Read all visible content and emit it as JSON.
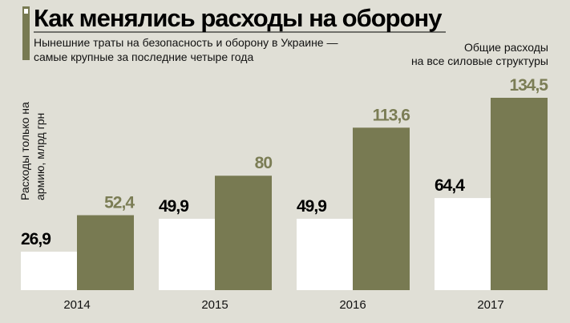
{
  "chart_data": {
    "type": "bar",
    "title": "Как менялись расходы на оборону",
    "subtitle": [
      "Нынешние траты на безопасность и оборону в Украине —",
      "самые крупные за последние четыре года"
    ],
    "categories": [
      "2014",
      "2015",
      "2016",
      "2017"
    ],
    "series": [
      {
        "name": "Расходы только на армию, млрд грн",
        "label_lines": [
          "Расходы только на",
          "армию, млрд грн"
        ],
        "values": [
          26.9,
          49.9,
          49.9,
          64.4
        ],
        "labels": [
          "26,9",
          "49,9",
          "49,9",
          "64,4"
        ],
        "color": "#ffffff",
        "label_color": "#000000"
      },
      {
        "name": "Общие расходы на все силовые структуры",
        "label_lines": [
          "Общие расходы",
          "на все силовые структуры"
        ],
        "values": [
          52.4,
          80,
          113.6,
          134.5
        ],
        "labels": [
          "52,4",
          "80",
          "113,6",
          "134,5"
        ],
        "color": "#787a52",
        "label_color": "#7b7d55"
      }
    ],
    "ylim": [
      0,
      134.5
    ],
    "grid": false
  }
}
